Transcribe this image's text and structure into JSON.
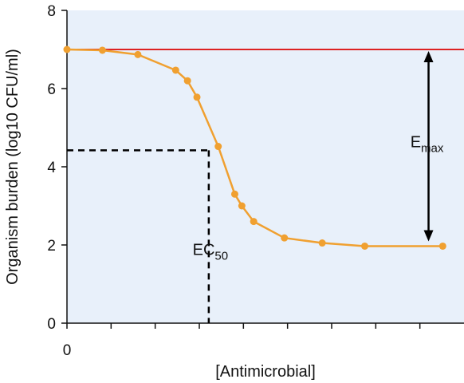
{
  "chart_data": {
    "type": "line",
    "xlabel": "[Antimicrobial]",
    "ylabel": "Organism burden (log10 CFU/ml)",
    "x_tick_labels": [
      "0"
    ],
    "x_tick_count": 9,
    "ylim": [
      0,
      8
    ],
    "y_ticks": [
      0,
      2,
      4,
      6,
      8
    ],
    "grid": false,
    "colors": {
      "background": "#e8f0fa",
      "curve": "#f0a030",
      "max_line": "#dd2222",
      "guides": "#000000"
    },
    "series": [
      {
        "x": [
          0,
          0.75,
          1.5,
          2.3,
          2.55,
          2.75,
          3.2,
          3.55,
          3.7,
          3.95,
          4.6,
          5.4,
          6.3,
          7.95
        ],
        "values": [
          7.0,
          6.98,
          6.87,
          6.47,
          6.2,
          5.78,
          4.52,
          3.3,
          3.0,
          2.6,
          2.18,
          2.05,
          1.97,
          1.97
        ]
      }
    ],
    "reference_line": {
      "y": 7.0
    },
    "ec50": {
      "x": 3.0,
      "y": 4.42,
      "label": "EC",
      "sub": "50"
    },
    "emax": {
      "y_top": 7.0,
      "y_bottom": 2.05,
      "label": "E",
      "sub": "max"
    }
  }
}
